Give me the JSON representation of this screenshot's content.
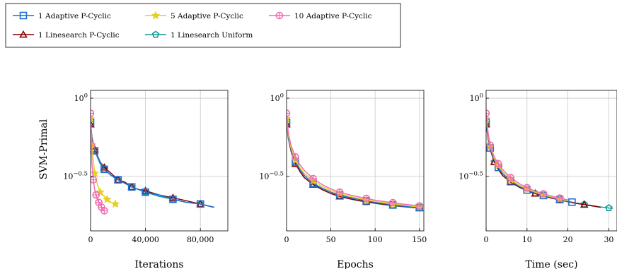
{
  "legend": {
    "entries": [
      {
        "label": "1 Adaptive P-Cyclic",
        "color": "#1f6fd1",
        "marker": "square"
      },
      {
        "label": "5 Adaptive P-Cyclic",
        "color": "#e6cf1f",
        "marker": "star"
      },
      {
        "label": "10 Adaptive P-Cyclic",
        "color": "#ee6fb0",
        "marker": "oplus"
      },
      {
        "label": "1 Linesearch P-Cyclic",
        "color": "#8b0000",
        "marker": "triangle"
      },
      {
        "label": "1 Linesearch Uniform",
        "color": "#0e9a98",
        "marker": "pentagon"
      }
    ]
  },
  "chart_data": [
    {
      "type": "line",
      "xlabel": "Iterations",
      "ylabel": "SVM-Primal",
      "yscale": "log",
      "ylim_exp": [
        -0.85,
        0.05
      ],
      "y_ticks": [
        {
          "exp": 0,
          "label": "10^0"
        },
        {
          "exp": -0.5,
          "label": "10^-0.5"
        }
      ],
      "xlim": [
        0,
        100000
      ],
      "x_ticks": [
        {
          "v": 0,
          "label": "0"
        },
        {
          "v": 40000,
          "label": "40,000"
        },
        {
          "v": 80000,
          "label": "80,000"
        }
      ],
      "grid": true,
      "series": [
        {
          "name": "1 Linesearch P-Cyclic",
          "x": [
            0,
            1000,
            3000,
            7000,
            10000,
            15000,
            20000,
            25000,
            30000,
            35000,
            40000,
            50000,
            60000,
            70000,
            80000,
            90000
          ],
          "y": [
            0.68,
            0.56,
            0.47,
            0.39,
            0.36,
            0.33,
            0.3,
            0.29,
            0.27,
            0.26,
            0.255,
            0.24,
            0.23,
            0.22,
            0.21,
            0.2
          ]
        },
        {
          "name": "1 Linesearch Uniform",
          "x": [
            0,
            1000,
            3000,
            7000,
            10000,
            15000,
            20000,
            25000,
            30000,
            35000,
            40000,
            50000,
            60000,
            70000,
            80000,
            90000
          ],
          "y": [
            0.69,
            0.55,
            0.46,
            0.38,
            0.35,
            0.32,
            0.3,
            0.285,
            0.27,
            0.26,
            0.25,
            0.235,
            0.225,
            0.215,
            0.21,
            0.2
          ]
        },
        {
          "name": "1 Adaptive P-Cyclic",
          "x": [
            0,
            1000,
            3000,
            7000,
            10000,
            15000,
            20000,
            25000,
            30000,
            35000,
            40000,
            50000,
            60000,
            70000,
            80000,
            90000
          ],
          "y": [
            0.7,
            0.55,
            0.46,
            0.39,
            0.35,
            0.32,
            0.3,
            0.285,
            0.27,
            0.26,
            0.25,
            0.24,
            0.225,
            0.215,
            0.21,
            0.2
          ]
        },
        {
          "name": "5 Adaptive P-Cyclic",
          "x": [
            0,
            500,
            1000,
            2000,
            3000,
            5000,
            7000,
            10000,
            12000,
            15000,
            18000,
            20000
          ],
          "y": [
            0.74,
            0.6,
            0.5,
            0.4,
            0.33,
            0.28,
            0.25,
            0.235,
            0.225,
            0.215,
            0.21,
            0.205
          ]
        },
        {
          "name": "10 Adaptive P-Cyclic",
          "x": [
            0,
            300,
            600,
            1000,
            2000,
            3000,
            4000,
            5000,
            6000,
            7000,
            8000,
            9000,
            10000
          ],
          "y": [
            0.8,
            0.65,
            0.5,
            0.38,
            0.3,
            0.26,
            0.24,
            0.225,
            0.215,
            0.21,
            0.2,
            0.195,
            0.19
          ]
        }
      ]
    },
    {
      "type": "line",
      "xlabel": "Epochs",
      "ylabel": "",
      "yscale": "log",
      "ylim_exp": [
        -0.85,
        0.05
      ],
      "y_ticks": [
        {
          "exp": 0,
          "label": "10^0"
        },
        {
          "exp": -0.5,
          "label": "10^-0.5"
        }
      ],
      "xlim": [
        0,
        155
      ],
      "x_ticks": [
        {
          "v": 0,
          "label": "0"
        },
        {
          "v": 50,
          "label": "50"
        },
        {
          "v": 100,
          "label": "100"
        },
        {
          "v": 150,
          "label": "150"
        }
      ],
      "grid": true,
      "series": [
        {
          "name": "1 Linesearch P-Cyclic",
          "x": [
            0,
            2,
            5,
            10,
            15,
            20,
            30,
            40,
            50,
            60,
            70,
            80,
            90,
            100,
            110,
            120,
            130,
            140,
            150
          ],
          "y": [
            0.68,
            0.56,
            0.46,
            0.38,
            0.34,
            0.31,
            0.28,
            0.26,
            0.245,
            0.235,
            0.228,
            0.222,
            0.217,
            0.213,
            0.209,
            0.206,
            0.203,
            0.2,
            0.198
          ]
        },
        {
          "name": "1 Linesearch Uniform",
          "x": [
            0,
            2,
            5,
            10,
            15,
            20,
            30,
            40,
            50,
            60,
            70,
            80,
            90,
            100,
            110,
            120,
            130,
            140,
            150
          ],
          "y": [
            0.69,
            0.55,
            0.46,
            0.38,
            0.34,
            0.31,
            0.28,
            0.26,
            0.245,
            0.235,
            0.227,
            0.221,
            0.216,
            0.212,
            0.208,
            0.205,
            0.202,
            0.2,
            0.198
          ]
        },
        {
          "name": "1 Adaptive P-Cyclic",
          "x": [
            0,
            2,
            5,
            10,
            15,
            20,
            30,
            40,
            50,
            60,
            70,
            80,
            90,
            100,
            110,
            120,
            130,
            140,
            150
          ],
          "y": [
            0.7,
            0.56,
            0.47,
            0.39,
            0.35,
            0.32,
            0.285,
            0.265,
            0.25,
            0.24,
            0.232,
            0.226,
            0.22,
            0.215,
            0.211,
            0.207,
            0.204,
            0.201,
            0.199
          ]
        },
        {
          "name": "5 Adaptive P-Cyclic",
          "x": [
            0,
            2,
            5,
            10,
            15,
            20,
            30,
            40,
            50,
            60,
            70,
            80,
            90,
            100,
            110,
            120,
            130,
            140,
            150
          ],
          "y": [
            0.74,
            0.58,
            0.48,
            0.4,
            0.36,
            0.33,
            0.295,
            0.272,
            0.256,
            0.245,
            0.236,
            0.229,
            0.223,
            0.218,
            0.214,
            0.21,
            0.207,
            0.204,
            0.201
          ]
        },
        {
          "name": "10 Adaptive P-Cyclic",
          "x": [
            0,
            2,
            5,
            10,
            15,
            20,
            30,
            40,
            50,
            60,
            70,
            80,
            90,
            100,
            110,
            120,
            130,
            140,
            150
          ],
          "y": [
            0.8,
            0.6,
            0.5,
            0.42,
            0.375,
            0.345,
            0.305,
            0.28,
            0.262,
            0.25,
            0.241,
            0.234,
            0.228,
            0.222,
            0.218,
            0.214,
            0.21,
            0.207,
            0.204
          ]
        }
      ]
    },
    {
      "type": "line",
      "xlabel": "Time (sec)",
      "ylabel": "",
      "yscale": "log",
      "ylim_exp": [
        -0.85,
        0.05
      ],
      "y_ticks": [
        {
          "exp": 0,
          "label": "10^0"
        },
        {
          "exp": -0.5,
          "label": "10^-0.5"
        }
      ],
      "xlim": [
        0,
        32
      ],
      "x_ticks": [
        {
          "v": 0,
          "label": "0"
        },
        {
          "v": 10,
          "label": "10"
        },
        {
          "v": 20,
          "label": "20"
        },
        {
          "v": 30,
          "label": "30"
        }
      ],
      "grid": true,
      "series": [
        {
          "name": "1 Linesearch P-Cyclic",
          "x": [
            0,
            0.5,
            1,
            2,
            3,
            4,
            6,
            8,
            10,
            12,
            14,
            16,
            18,
            20,
            22,
            24,
            26,
            28
          ],
          "y": [
            0.68,
            0.55,
            0.47,
            0.39,
            0.35,
            0.32,
            0.29,
            0.27,
            0.255,
            0.245,
            0.236,
            0.229,
            0.223,
            0.217,
            0.212,
            0.208,
            0.204,
            0.2
          ]
        },
        {
          "name": "1 Linesearch Uniform",
          "x": [
            0,
            0.5,
            1,
            2,
            3,
            4,
            6,
            8,
            10,
            12,
            14,
            16,
            18,
            20,
            22,
            24,
            26,
            28,
            30,
            31
          ],
          "y": [
            0.69,
            0.55,
            0.47,
            0.39,
            0.35,
            0.32,
            0.29,
            0.27,
            0.256,
            0.246,
            0.237,
            0.23,
            0.224,
            0.218,
            0.213,
            0.209,
            0.205,
            0.201,
            0.198,
            0.197
          ]
        },
        {
          "name": "1 Adaptive P-Cyclic",
          "x": [
            0,
            0.5,
            1,
            2,
            3,
            4,
            6,
            8,
            10,
            12,
            14,
            16,
            18,
            20,
            21
          ],
          "y": [
            0.7,
            0.56,
            0.48,
            0.4,
            0.36,
            0.33,
            0.295,
            0.273,
            0.258,
            0.247,
            0.238,
            0.231,
            0.224,
            0.218,
            0.216
          ]
        },
        {
          "name": "5 Adaptive P-Cyclic",
          "x": [
            0,
            0.5,
            1,
            2,
            3,
            4,
            6,
            8,
            10,
            12,
            14,
            16,
            18,
            20
          ],
          "y": [
            0.74,
            0.58,
            0.49,
            0.41,
            0.37,
            0.34,
            0.3,
            0.278,
            0.262,
            0.25,
            0.24,
            0.233,
            0.226,
            0.22
          ]
        },
        {
          "name": "10 Adaptive P-Cyclic",
          "x": [
            0,
            0.5,
            1,
            2,
            3,
            4,
            6,
            8,
            10,
            12,
            14,
            16,
            18,
            20
          ],
          "y": [
            0.8,
            0.6,
            0.5,
            0.42,
            0.38,
            0.35,
            0.31,
            0.285,
            0.267,
            0.254,
            0.244,
            0.236,
            0.229,
            0.223
          ]
        }
      ]
    }
  ]
}
